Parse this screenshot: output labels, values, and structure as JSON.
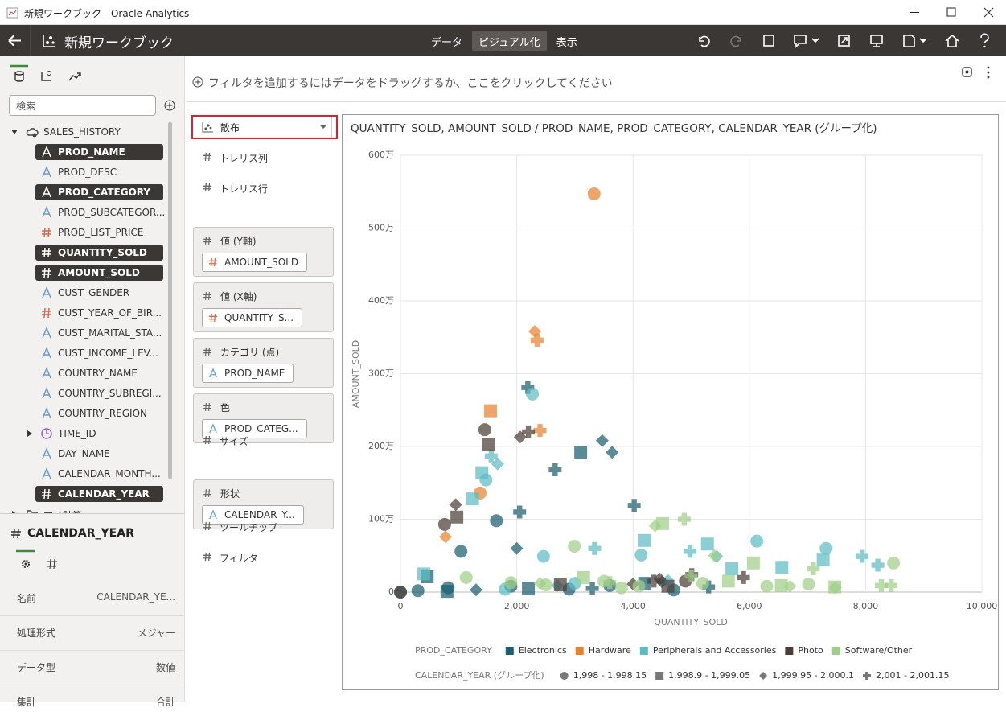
{
  "window": {
    "title": "新規ワークブック - Oracle Analytics"
  },
  "header": {
    "title": "新規ワークブック",
    "tabs": [
      {
        "label": "データ",
        "selected": false
      },
      {
        "label": "ビジュアル化",
        "selected": true
      },
      {
        "label": "表示",
        "selected": false
      }
    ]
  },
  "data_panel": {
    "search_placeholder": "検索",
    "tree": [
      {
        "label": "SALES_HISTORY",
        "kind": "source",
        "selected": false
      },
      {
        "label": "PROD_NAME",
        "kind": "attribute",
        "selected": true
      },
      {
        "label": "PROD_DESC",
        "kind": "attribute",
        "selected": false
      },
      {
        "label": "PROD_CATEGORY",
        "kind": "attribute",
        "selected": true
      },
      {
        "label": "PROD_SUBCATEGOR...",
        "kind": "attribute",
        "selected": false
      },
      {
        "label": "PROD_LIST_PRICE",
        "kind": "measure",
        "selected": false
      },
      {
        "label": "QUANTITY_SOLD",
        "kind": "measure",
        "selected": true
      },
      {
        "label": "AMOUNT_SOLD",
        "kind": "measure",
        "selected": true
      },
      {
        "label": "CUST_GENDER",
        "kind": "attribute",
        "selected": false
      },
      {
        "label": "CUST_YEAR_OF_BIR...",
        "kind": "measure",
        "selected": false
      },
      {
        "label": "CUST_MARITAL_STA...",
        "kind": "attribute",
        "selected": false
      },
      {
        "label": "CUST_INCOME_LEV...",
        "kind": "attribute",
        "selected": false
      },
      {
        "label": "COUNTRY_NAME",
        "kind": "attribute",
        "selected": false
      },
      {
        "label": "COUNTRY_SUBREGI...",
        "kind": "attribute",
        "selected": false
      },
      {
        "label": "COUNTRY_REGION",
        "kind": "attribute",
        "selected": false
      },
      {
        "label": "TIME_ID",
        "kind": "date",
        "selected": false
      },
      {
        "label": "DAY_NAME",
        "kind": "attribute",
        "selected": false
      },
      {
        "label": "CALENDAR_MONTH...",
        "kind": "attribute",
        "selected": false
      },
      {
        "label": "CALENDAR_YEAR",
        "kind": "measure",
        "selected": true
      },
      {
        "label": "マイ計算",
        "kind": "folder",
        "selected": false
      }
    ]
  },
  "properties": {
    "title": "CALENDAR_YEAR",
    "rows": [
      {
        "label": "名前",
        "value": "CALENDAR_YE..."
      },
      {
        "label": "処理形式",
        "value": "メジャー"
      },
      {
        "label": "データ型",
        "value": "数値"
      },
      {
        "label": "集計",
        "value": "合計"
      }
    ]
  },
  "filter_bar": {
    "placeholder": "フィルタを追加するにはデータをドラッグするか、ここをクリックしてください"
  },
  "grammar": {
    "chart_type": "散布",
    "items": [
      {
        "label": "トレリス列"
      },
      {
        "label": "トレリス行"
      },
      {
        "label": "値 (Y軸)",
        "field": "AMOUNT_SOLD",
        "field_kind": "measure"
      },
      {
        "label": "値 (X軸)",
        "field": "QUANTITY_S...",
        "field_kind": "measure"
      },
      {
        "label": "カテゴリ (点)",
        "field": "PROD_NAME",
        "field_kind": "attribute"
      },
      {
        "label": "色",
        "field": "PROD_CATEG...",
        "field_kind": "attribute"
      },
      {
        "label": "サイズ"
      },
      {
        "label": "形状",
        "field": "CALENDAR_Y...",
        "field_kind": "attribute"
      },
      {
        "label": "ツールチップ"
      },
      {
        "label": "フィルタ"
      }
    ]
  },
  "chart": {
    "type": "scatter",
    "title": "QUANTITY_SOLD, AMOUNT_SOLD / PROD_NAME, PROD_CATEGORY, CALENDAR_YEAR (グループ化)",
    "x_label": "QUANTITY_SOLD",
    "y_label": "AMOUNT_SOLD",
    "xlim": [
      0,
      10000
    ],
    "xticks": [
      0,
      {
        "value": 2000,
        "label": "2,000"
      },
      {
        "value": 4000,
        "label": "4,000"
      },
      {
        "value": 6000,
        "label": "6,000"
      },
      {
        "value": 8000,
        "label": "8,000"
      },
      {
        "value": 10000,
        "label": "10,000"
      }
    ],
    "ylim": [
      0,
      6000000
    ],
    "yticks": [
      0,
      {
        "value": 1000000,
        "label": "100万"
      },
      {
        "value": 2000000,
        "label": "200万"
      },
      {
        "value": 3000000,
        "label": "300万"
      },
      {
        "value": 4000000,
        "label": "400万"
      },
      {
        "value": 5000000,
        "label": "500万"
      },
      {
        "value": 6000000,
        "label": "600万"
      }
    ],
    "grid": true,
    "color_legend": {
      "title": "PROD_CATEGORY",
      "items": [
        {
          "name": "Electronics",
          "color": "#1b5e6d"
        },
        {
          "name": "Hardware",
          "color": "#e8822c"
        },
        {
          "name": "Peripherals and Accessories",
          "color": "#5bbcc2"
        },
        {
          "name": "Photo",
          "color": "#4b3d38"
        },
        {
          "name": "Software/Other",
          "color": "#9fcf87"
        }
      ]
    },
    "shape_legend": {
      "title": "CALENDAR_YEAR (グループ化)",
      "items": [
        {
          "name": "1,998 - 1,998.15",
          "shape": "circle"
        },
        {
          "name": "1,998.9 - 1,999.05",
          "shape": "square"
        },
        {
          "name": "1,999.95 - 2,000.1",
          "shape": "diamond"
        },
        {
          "name": "2,001 - 2,001.15",
          "shape": "plus"
        }
      ]
    },
    "series": [
      {
        "color_group": "Electronics",
        "shape_group": "1,998 - 1,998.15",
        "x": [
          1040,
          1650,
          300,
          820,
          1900,
          2900,
          3600,
          4700,
          0
        ],
        "y": [
          560000,
          980000,
          20000,
          60000,
          80000,
          40000,
          90000,
          30000,
          0
        ]
      },
      {
        "color_group": "Electronics",
        "shape_group": "1,998.9 - 1,999.05",
        "x": [
          3100,
          460,
          800,
          2200,
          4200
        ],
        "y": [
          1920000,
          210000,
          10000,
          50000,
          120000
        ]
      },
      {
        "color_group": "Electronics",
        "shape_group": "1,999.95 - 2,000.1",
        "x": [
          3470,
          3640,
          2000,
          1300,
          4500
        ],
        "y": [
          2080000,
          1920000,
          600000,
          30000,
          140000
        ]
      },
      {
        "color_group": "Electronics",
        "shape_group": "2,001 - 2,001.15",
        "x": [
          2660,
          4020,
          2050,
          2190,
          3300,
          5300
        ],
        "y": [
          1680000,
          1190000,
          1100000,
          2810000,
          50000,
          70000
        ]
      },
      {
        "color_group": "Hardware",
        "shape_group": "1,998 - 1,998.15",
        "x": [
          3330,
          1370
        ],
        "y": [
          5470000,
          1360000
        ]
      },
      {
        "color_group": "Hardware",
        "shape_group": "1,998.9 - 1,999.05",
        "x": [
          1550
        ],
        "y": [
          2490000
        ]
      },
      {
        "color_group": "Hardware",
        "shape_group": "1,999.95 - 2,000.1",
        "x": [
          2310,
          775
        ],
        "y": [
          3580000,
          760000
        ]
      },
      {
        "color_group": "Hardware",
        "shape_group": "2,001 - 2,001.15",
        "x": [
          2350,
          2400
        ],
        "y": [
          3460000,
          2220000
        ]
      },
      {
        "color_group": "Peripherals and Accessories",
        "shape_group": "1,998 - 1,998.15",
        "x": [
          2270,
          1470,
          2460,
          6130,
          7320,
          4140,
          3000,
          1800
        ],
        "y": [
          2720000,
          1540000,
          490000,
          700000,
          600000,
          510000,
          120000,
          40000
        ]
      },
      {
        "color_group": "Peripherals and Accessories",
        "shape_group": "1,998.9 - 1,999.05",
        "x": [
          1400,
          1240,
          4190,
          5280,
          6560,
          7270,
          5700,
          400
        ],
        "y": [
          1640000,
          1280000,
          710000,
          660000,
          340000,
          440000,
          320000,
          250000
        ]
      },
      {
        "color_group": "Peripherals and Accessories",
        "shape_group": "1,999.95 - 2,000.1",
        "x": [
          1670,
          5440,
          4600,
          2700
        ],
        "y": [
          1760000,
          490000,
          160000,
          90000
        ]
      },
      {
        "color_group": "Peripherals and Accessories",
        "shape_group": "2,001 - 2,001.15",
        "x": [
          1560,
          7940,
          4980,
          8210,
          3340
        ],
        "y": [
          1870000,
          490000,
          560000,
          370000,
          600000
        ]
      },
      {
        "color_group": "Photo",
        "shape_group": "1,998 - 1,998.15",
        "x": [
          1450,
          760,
          0,
          4900
        ],
        "y": [
          2230000,
          930000,
          0,
          150000
        ]
      },
      {
        "color_group": "Photo",
        "shape_group": "1,998.9 - 1,999.05",
        "x": [
          1520,
          970,
          2750,
          4600
        ],
        "y": [
          2030000,
          1030000,
          100000,
          80000
        ]
      },
      {
        "color_group": "Photo",
        "shape_group": "1,999.95 - 2,000.1",
        "x": [
          950,
          2060,
          4460,
          4000
        ],
        "y": [
          1200000,
          2130000,
          180000,
          110000
        ]
      },
      {
        "color_group": "Photo",
        "shape_group": "2,001 - 2,001.15",
        "x": [
          2200,
          5010,
          5900,
          4360
        ],
        "y": [
          2200000,
          240000,
          200000,
          150000
        ]
      },
      {
        "color_group": "Software/Other",
        "shape_group": "1,998 - 1,998.15",
        "x": [
          2990,
          8480,
          7020,
          1130,
          3500,
          4100,
          2500,
          1900,
          6300,
          5200,
          3800
        ],
        "y": [
          630000,
          400000,
          110000,
          200000,
          150000,
          80000,
          100000,
          130000,
          80000,
          120000,
          60000
        ]
      },
      {
        "color_group": "Software/Other",
        "shape_group": "1,998.9 - 1,999.05",
        "x": [
          4510,
          6070,
          7470,
          5640,
          3150,
          6550
        ],
        "y": [
          940000,
          400000,
          70000,
          150000,
          200000,
          90000
        ]
      },
      {
        "color_group": "Software/Other",
        "shape_group": "1,999.95 - 2,000.1",
        "x": [
          4380,
          5400,
          6700,
          2400,
          7480
        ],
        "y": [
          910000,
          500000,
          80000,
          120000,
          60000
        ]
      },
      {
        "color_group": "Software/Other",
        "shape_group": "2,001 - 2,001.15",
        "x": [
          4880,
          7100,
          8440,
          3600,
          5000,
          8270
        ],
        "y": [
          1000000,
          320000,
          90000,
          130000,
          220000,
          90000
        ]
      }
    ]
  }
}
